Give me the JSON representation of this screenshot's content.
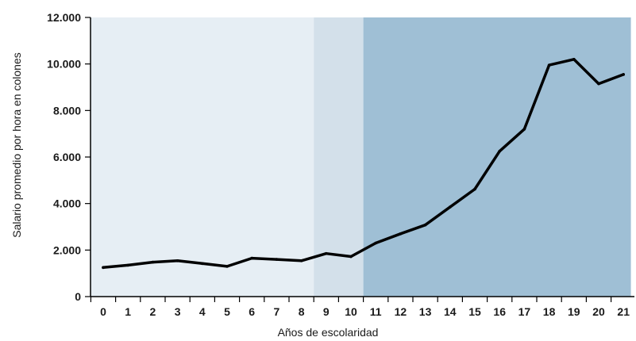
{
  "chart_data": {
    "type": "line",
    "xlabel": "Años de escolaridad",
    "ylabel": "Salario promedio por hora en colones",
    "x": [
      0,
      1,
      2,
      3,
      4,
      5,
      6,
      7,
      8,
      9,
      10,
      11,
      12,
      13,
      14,
      15,
      16,
      17,
      18,
      19,
      20,
      21
    ],
    "series": [
      {
        "values": [
          1250,
          1350,
          1480,
          1540,
          1420,
          1300,
          1650,
          1600,
          1540,
          1850,
          1720,
          2300,
          2700,
          3080,
          3850,
          4620,
          6250,
          7200,
          9950,
          10200,
          9150,
          9550
        ]
      }
    ],
    "xlim": [
      -0.5,
      21.3
    ],
    "ylim": [
      0,
      12000
    ],
    "yticks": [
      0,
      2000,
      4000,
      6000,
      8000,
      10000,
      12000
    ],
    "ytick_labels": [
      "0",
      "2.000",
      "4.000",
      "6.000",
      "8.000",
      "10.000",
      "12.000"
    ],
    "xtick_labels": [
      "0",
      "1",
      "2",
      "3",
      "4",
      "5",
      "6",
      "7",
      "8",
      "9",
      "10",
      "11",
      "12",
      "13",
      "14",
      "15",
      "16",
      "17",
      "18",
      "19",
      "20",
      "21"
    ],
    "bands": [
      {
        "from": -0.5,
        "to": 8.5,
        "color": "#e6eef4"
      },
      {
        "from": 8.5,
        "to": 10.5,
        "color": "#d3e0ea"
      },
      {
        "from": 10.5,
        "to": 21.3,
        "color": "#9fbfd5"
      }
    ],
    "line_color": "#000000",
    "grid": false
  }
}
